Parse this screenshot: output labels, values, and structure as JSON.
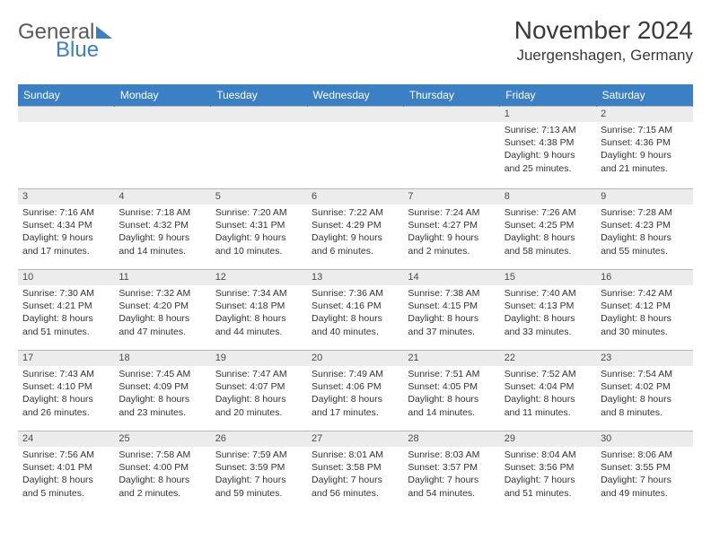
{
  "logo": {
    "part1": "General",
    "part2": "Blue"
  },
  "title": "November 2024",
  "location": "Juergenshagen, Germany",
  "day_headers": [
    "Sunday",
    "Monday",
    "Tuesday",
    "Wednesday",
    "Thursday",
    "Friday",
    "Saturday"
  ],
  "colors": {
    "header_bg": "#3b7fc4",
    "header_text": "#ffffff",
    "daynum_bg": "#ececec",
    "text": "#333333",
    "border": "#b8b8b8",
    "logo_gray": "#5a5a5a",
    "logo_blue": "#3b7fc4"
  },
  "typography": {
    "title_fontsize": 28,
    "location_fontsize": 17,
    "header_fontsize": 12,
    "daynum_fontsize": 11,
    "detail_fontsize": 10.5
  },
  "weeks": [
    [
      null,
      null,
      null,
      null,
      null,
      {
        "n": "1",
        "sr": "Sunrise: 7:13 AM",
        "ss": "Sunset: 4:38 PM",
        "dl": "Daylight: 9 hours and 25 minutes."
      },
      {
        "n": "2",
        "sr": "Sunrise: 7:15 AM",
        "ss": "Sunset: 4:36 PM",
        "dl": "Daylight: 9 hours and 21 minutes."
      }
    ],
    [
      {
        "n": "3",
        "sr": "Sunrise: 7:16 AM",
        "ss": "Sunset: 4:34 PM",
        "dl": "Daylight: 9 hours and 17 minutes."
      },
      {
        "n": "4",
        "sr": "Sunrise: 7:18 AM",
        "ss": "Sunset: 4:32 PM",
        "dl": "Daylight: 9 hours and 14 minutes."
      },
      {
        "n": "5",
        "sr": "Sunrise: 7:20 AM",
        "ss": "Sunset: 4:31 PM",
        "dl": "Daylight: 9 hours and 10 minutes."
      },
      {
        "n": "6",
        "sr": "Sunrise: 7:22 AM",
        "ss": "Sunset: 4:29 PM",
        "dl": "Daylight: 9 hours and 6 minutes."
      },
      {
        "n": "7",
        "sr": "Sunrise: 7:24 AM",
        "ss": "Sunset: 4:27 PM",
        "dl": "Daylight: 9 hours and 2 minutes."
      },
      {
        "n": "8",
        "sr": "Sunrise: 7:26 AM",
        "ss": "Sunset: 4:25 PM",
        "dl": "Daylight: 8 hours and 58 minutes."
      },
      {
        "n": "9",
        "sr": "Sunrise: 7:28 AM",
        "ss": "Sunset: 4:23 PM",
        "dl": "Daylight: 8 hours and 55 minutes."
      }
    ],
    [
      {
        "n": "10",
        "sr": "Sunrise: 7:30 AM",
        "ss": "Sunset: 4:21 PM",
        "dl": "Daylight: 8 hours and 51 minutes."
      },
      {
        "n": "11",
        "sr": "Sunrise: 7:32 AM",
        "ss": "Sunset: 4:20 PM",
        "dl": "Daylight: 8 hours and 47 minutes."
      },
      {
        "n": "12",
        "sr": "Sunrise: 7:34 AM",
        "ss": "Sunset: 4:18 PM",
        "dl": "Daylight: 8 hours and 44 minutes."
      },
      {
        "n": "13",
        "sr": "Sunrise: 7:36 AM",
        "ss": "Sunset: 4:16 PM",
        "dl": "Daylight: 8 hours and 40 minutes."
      },
      {
        "n": "14",
        "sr": "Sunrise: 7:38 AM",
        "ss": "Sunset: 4:15 PM",
        "dl": "Daylight: 8 hours and 37 minutes."
      },
      {
        "n": "15",
        "sr": "Sunrise: 7:40 AM",
        "ss": "Sunset: 4:13 PM",
        "dl": "Daylight: 8 hours and 33 minutes."
      },
      {
        "n": "16",
        "sr": "Sunrise: 7:42 AM",
        "ss": "Sunset: 4:12 PM",
        "dl": "Daylight: 8 hours and 30 minutes."
      }
    ],
    [
      {
        "n": "17",
        "sr": "Sunrise: 7:43 AM",
        "ss": "Sunset: 4:10 PM",
        "dl": "Daylight: 8 hours and 26 minutes."
      },
      {
        "n": "18",
        "sr": "Sunrise: 7:45 AM",
        "ss": "Sunset: 4:09 PM",
        "dl": "Daylight: 8 hours and 23 minutes."
      },
      {
        "n": "19",
        "sr": "Sunrise: 7:47 AM",
        "ss": "Sunset: 4:07 PM",
        "dl": "Daylight: 8 hours and 20 minutes."
      },
      {
        "n": "20",
        "sr": "Sunrise: 7:49 AM",
        "ss": "Sunset: 4:06 PM",
        "dl": "Daylight: 8 hours and 17 minutes."
      },
      {
        "n": "21",
        "sr": "Sunrise: 7:51 AM",
        "ss": "Sunset: 4:05 PM",
        "dl": "Daylight: 8 hours and 14 minutes."
      },
      {
        "n": "22",
        "sr": "Sunrise: 7:52 AM",
        "ss": "Sunset: 4:04 PM",
        "dl": "Daylight: 8 hours and 11 minutes."
      },
      {
        "n": "23",
        "sr": "Sunrise: 7:54 AM",
        "ss": "Sunset: 4:02 PM",
        "dl": "Daylight: 8 hours and 8 minutes."
      }
    ],
    [
      {
        "n": "24",
        "sr": "Sunrise: 7:56 AM",
        "ss": "Sunset: 4:01 PM",
        "dl": "Daylight: 8 hours and 5 minutes."
      },
      {
        "n": "25",
        "sr": "Sunrise: 7:58 AM",
        "ss": "Sunset: 4:00 PM",
        "dl": "Daylight: 8 hours and 2 minutes."
      },
      {
        "n": "26",
        "sr": "Sunrise: 7:59 AM",
        "ss": "Sunset: 3:59 PM",
        "dl": "Daylight: 7 hours and 59 minutes."
      },
      {
        "n": "27",
        "sr": "Sunrise: 8:01 AM",
        "ss": "Sunset: 3:58 PM",
        "dl": "Daylight: 7 hours and 56 minutes."
      },
      {
        "n": "28",
        "sr": "Sunrise: 8:03 AM",
        "ss": "Sunset: 3:57 PM",
        "dl": "Daylight: 7 hours and 54 minutes."
      },
      {
        "n": "29",
        "sr": "Sunrise: 8:04 AM",
        "ss": "Sunset: 3:56 PM",
        "dl": "Daylight: 7 hours and 51 minutes."
      },
      {
        "n": "30",
        "sr": "Sunrise: 8:06 AM",
        "ss": "Sunset: 3:55 PM",
        "dl": "Daylight: 7 hours and 49 minutes."
      }
    ]
  ]
}
